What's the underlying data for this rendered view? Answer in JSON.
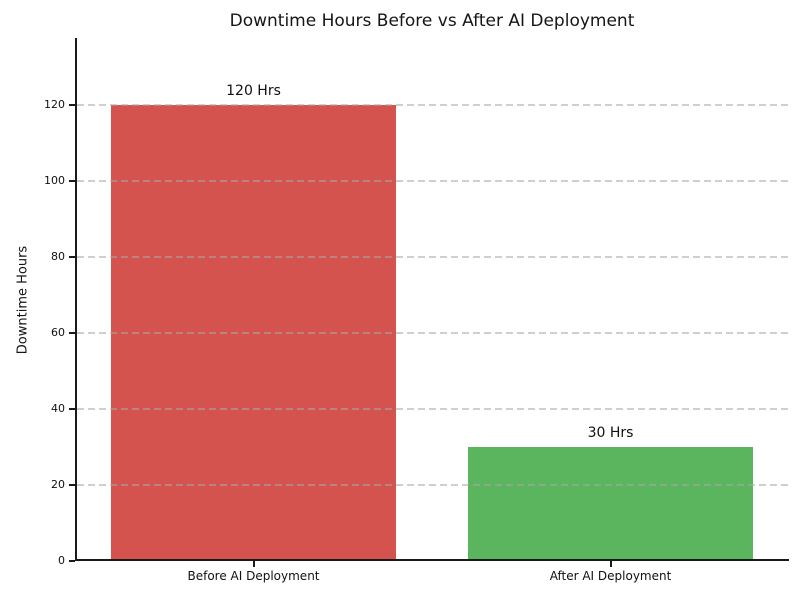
{
  "chart_data": {
    "type": "bar",
    "title": "Downtime Hours Before vs After AI Deployment",
    "ylabel": "Downtime Hours",
    "categories": [
      "Before AI Deployment",
      "After AI Deployment"
    ],
    "values": [
      120,
      30
    ],
    "bar_labels": [
      "120 Hrs",
      "30 Hrs"
    ],
    "bar_colors": [
      "#d5534f",
      "#5ab55e"
    ],
    "yticks": [
      0,
      20,
      40,
      60,
      80,
      100,
      120
    ],
    "ylim": [
      0,
      137.6
    ],
    "bar_width_fraction": 0.8,
    "grid": {
      "axis": "y",
      "style": "dashed",
      "color": "#c9c9c9",
      "drawn_over_bars": true
    },
    "legend": "none",
    "background_color": "#ffffff",
    "spine_color": "#1a1a1a"
  }
}
